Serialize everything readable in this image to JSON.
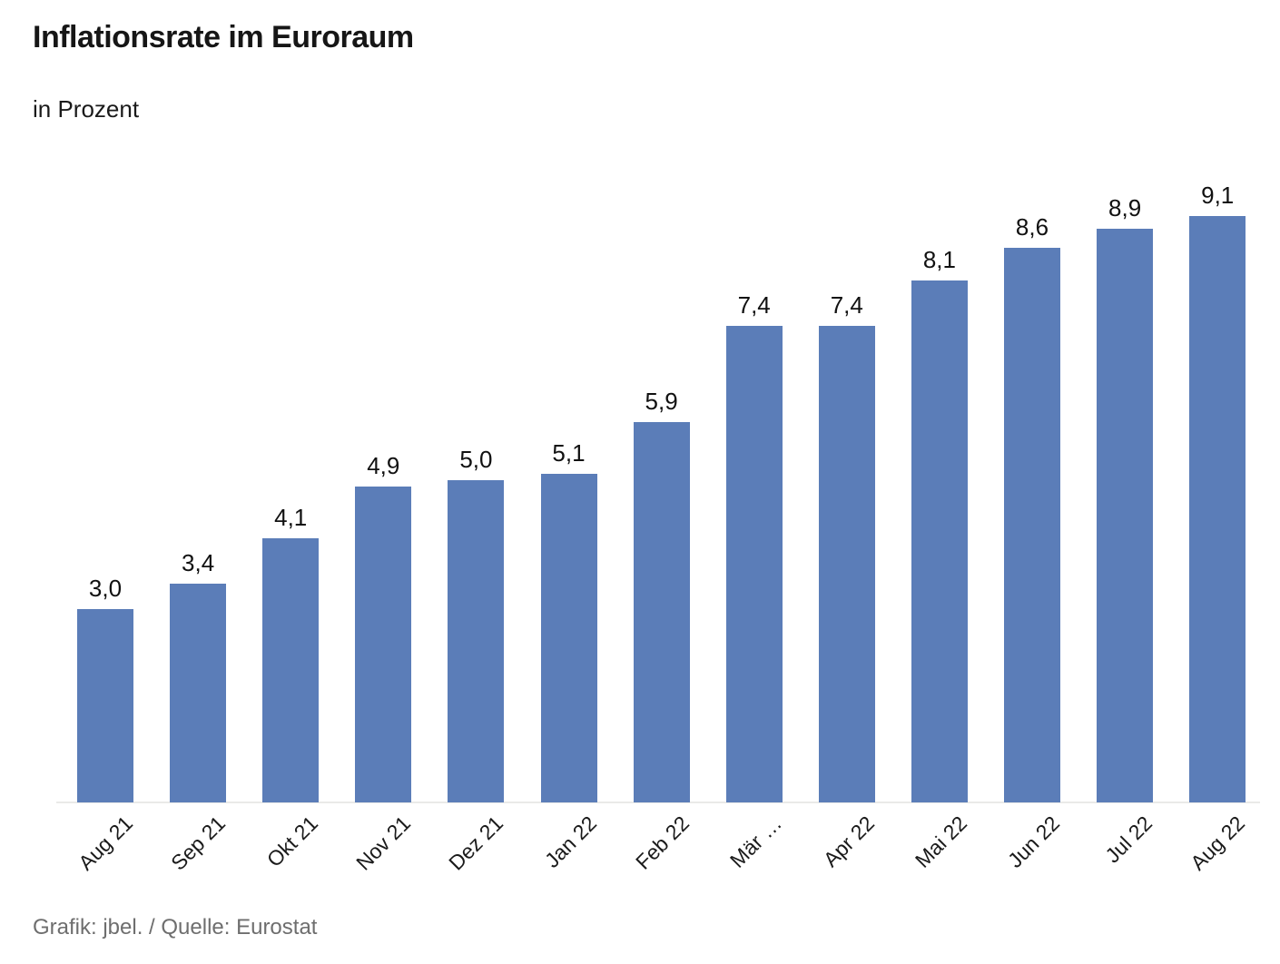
{
  "header": {
    "title": "Inflationsrate im Euroraum",
    "subtitle": "in Prozent"
  },
  "footer": {
    "credit": "Grafik: jbel. / Quelle: Eurostat"
  },
  "chart_data": {
    "type": "bar",
    "title": "Inflationsrate im Euroraum",
    "subtitle": "in Prozent",
    "unit": "Prozent",
    "categories": [
      "Aug 21",
      "Sep 21",
      "Okt 21",
      "Nov 21",
      "Dez 21",
      "Jan 22",
      "Feb 22",
      "Mär …",
      "Apr 22",
      "Mai 22",
      "Jun 22",
      "Jul 22",
      "Aug 22"
    ],
    "values": [
      3.0,
      3.4,
      4.1,
      4.9,
      5.0,
      5.1,
      5.9,
      7.4,
      7.4,
      8.1,
      8.6,
      8.9,
      9.1
    ],
    "value_labels": [
      "3,0",
      "3,4",
      "4,1",
      "4,9",
      "5,0",
      "5,1",
      "5,9",
      "7,4",
      "7,4",
      "8,1",
      "8,6",
      "8,9",
      "9,1"
    ],
    "bar_color": "#5b7db8",
    "baseline_color": "#eaeae8",
    "text_color": "#1a1a1a",
    "xlabel": "",
    "ylabel": "",
    "ylim": [
      0,
      9.6
    ],
    "grid": false,
    "legend": false
  }
}
